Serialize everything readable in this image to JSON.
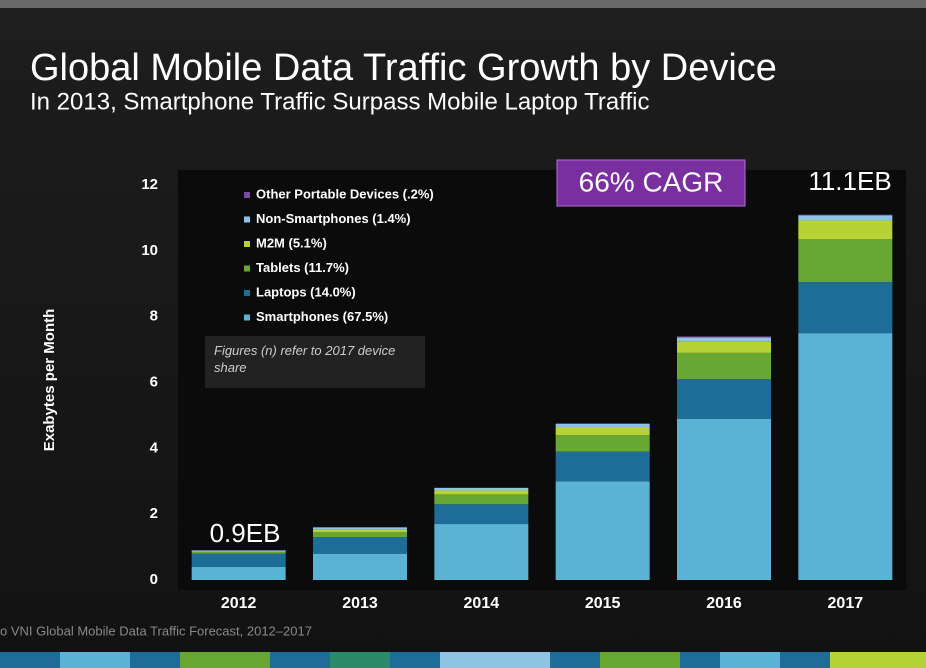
{
  "chart_data": {
    "type": "stacked_bar",
    "title": "Global Mobile Data Traffic Growth by Device",
    "subtitle": "In 2013, Smartphone Traffic Surpass Mobile Laptop Traffic",
    "y_label": "Exabytes per Month",
    "categories": [
      "2012",
      "2013",
      "2014",
      "2015",
      "2016",
      "2017"
    ],
    "series": [
      {
        "name": "Smartphones (67.5%)",
        "color": "#5ab2d4",
        "values": [
          0.4,
          0.8,
          1.7,
          3.0,
          4.9,
          7.5
        ]
      },
      {
        "name": "Laptops (14.0%)",
        "color": "#1d6d98",
        "values": [
          0.4,
          0.5,
          0.6,
          0.9,
          1.2,
          1.55
        ]
      },
      {
        "name": "Tablets (11.7%)",
        "color": "#68a832",
        "values": [
          0.05,
          0.15,
          0.3,
          0.5,
          0.8,
          1.3
        ]
      },
      {
        "name": "M2M (5.1%)",
        "color": "#b7d234",
        "values": [
          0.02,
          0.08,
          0.12,
          0.25,
          0.35,
          0.57
        ]
      },
      {
        "name": "Non-Smartphones (1.4%)",
        "color": "#8fc3e3",
        "values": [
          0.03,
          0.07,
          0.08,
          0.1,
          0.12,
          0.16
        ]
      },
      {
        "name": "Other Portable Devices (.2%)",
        "color": "#7b4aa3",
        "values": [
          0.0,
          0.0,
          0.0,
          0.0,
          0.03,
          0.02
        ]
      }
    ],
    "ylim": [
      0,
      12
    ],
    "yticks": [
      0,
      2,
      4,
      6,
      8,
      10,
      12
    ],
    "grid": false,
    "legend": "top-left",
    "annotations": [
      "Figures (n) refer to 2017 device share",
      "66% CAGR",
      "0.9EB",
      "11.1EB"
    ],
    "source": "o VNI Global Mobile Data Traffic Forecast, 2012–2017"
  }
}
